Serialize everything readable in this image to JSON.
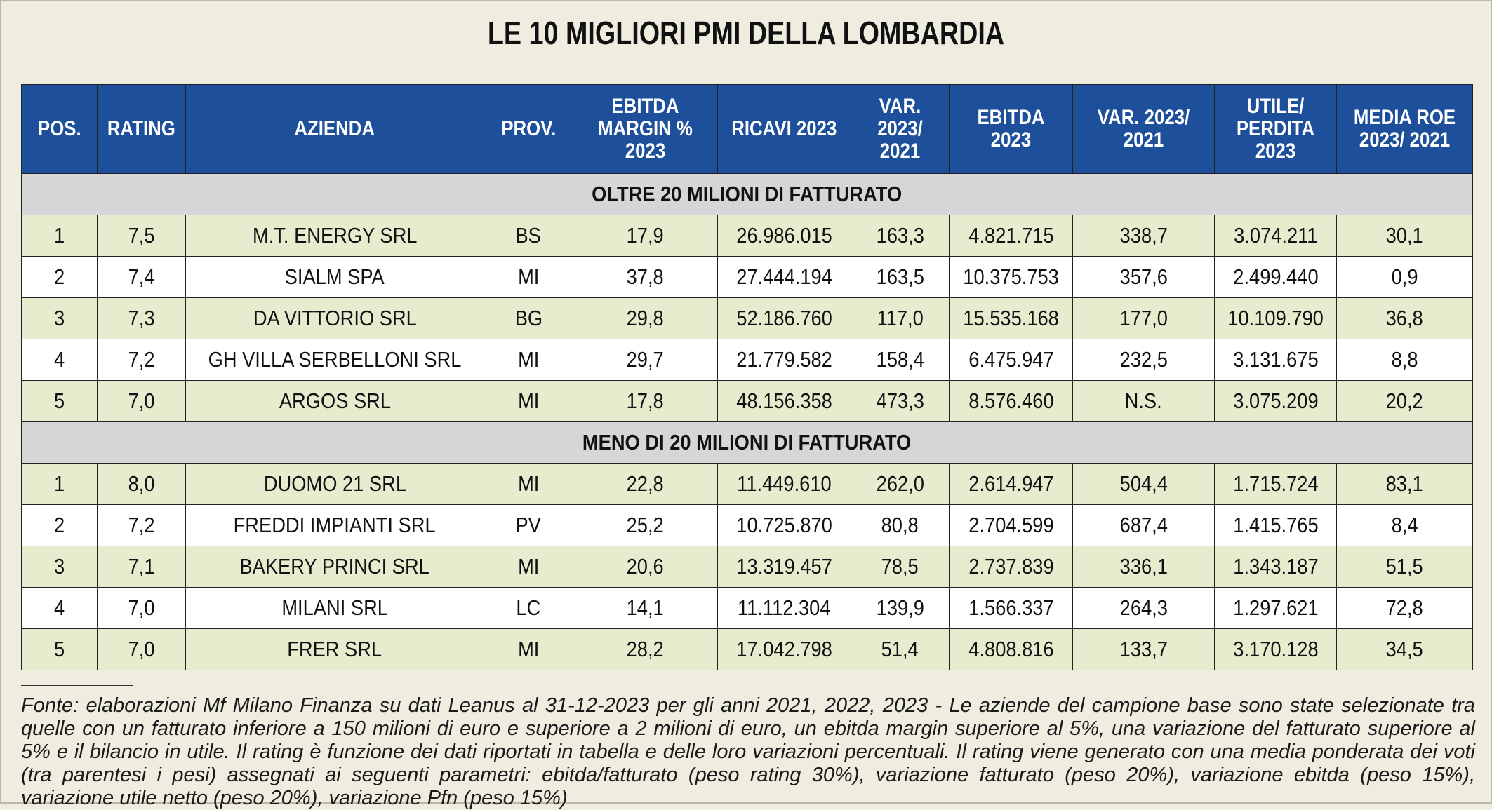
{
  "title": "LE 10 MIGLIORI PMI DELLA LOMBARDIA",
  "columns": [
    "POS.",
    "RATING",
    "AZIENDA",
    "PROV.",
    "EBITDA MARGIN % 2023",
    "RICAVI 2023",
    "VAR. 2023/ 2021",
    "EBITDA 2023",
    "VAR. 2023/ 2021",
    "UTILE/ PERDITA 2023",
    "MEDIA ROE 2023/ 2021"
  ],
  "sections": [
    {
      "label": "OLTRE 20 MILIONI DI FATTURATO",
      "rows": [
        [
          "1",
          "7,5",
          "M.T. ENERGY SRL",
          "BS",
          "17,9",
          "26.986.015",
          "163,3",
          "4.821.715",
          "338,7",
          "3.074.211",
          "30,1"
        ],
        [
          "2",
          "7,4",
          "SIALM SPA",
          "MI",
          "37,8",
          "27.444.194",
          "163,5",
          "10.375.753",
          "357,6",
          "2.499.440",
          "0,9"
        ],
        [
          "3",
          "7,3",
          "DA VITTORIO SRL",
          "BG",
          "29,8",
          "52.186.760",
          "117,0",
          "15.535.168",
          "177,0",
          "10.109.790",
          "36,8"
        ],
        [
          "4",
          "7,2",
          "GH VILLA SERBELLONI SRL",
          "MI",
          "29,7",
          "21.779.582",
          "158,4",
          "6.475.947",
          "232,5",
          "3.131.675",
          "8,8"
        ],
        [
          "5",
          "7,0",
          "ARGOS SRL",
          "MI",
          "17,8",
          "48.156.358",
          "473,3",
          "8.576.460",
          "N.S.",
          "3.075.209",
          "20,2"
        ]
      ]
    },
    {
      "label": "MENO DI 20 MILIONI DI FATTURATO",
      "rows": [
        [
          "1",
          "8,0",
          "DUOMO 21 SRL",
          "MI",
          "22,8",
          "11.449.610",
          "262,0",
          "2.614.947",
          "504,4",
          "1.715.724",
          "83,1"
        ],
        [
          "2",
          "7,2",
          "FREDDI IMPIANTI SRL",
          "PV",
          "25,2",
          "10.725.870",
          "80,8",
          "2.704.599",
          "687,4",
          "1.415.765",
          "8,4"
        ],
        [
          "3",
          "7,1",
          "BAKERY PRINCI SRL",
          "MI",
          "20,6",
          "13.319.457",
          "78,5",
          "2.737.839",
          "336,1",
          "1.343.187",
          "51,5"
        ],
        [
          "4",
          "7,0",
          "MILANI SRL",
          "LC",
          "14,1",
          "11.112.304",
          "139,9",
          "1.566.337",
          "264,3",
          "1.297.621",
          "72,8"
        ],
        [
          "5",
          "7,0",
          "FRER SRL",
          "MI",
          "28,2",
          "17.042.798",
          "51,4",
          "4.808.816",
          "133,7",
          "3.170.128",
          "34,5"
        ]
      ]
    }
  ],
  "footnote": "Fonte: elaborazioni Mf Milano Finanza su dati Leanus al 31-12-2023 per gli anni 2021, 2022, 2023 - Le aziende del campione base sono state selezionate tra quelle con un fatturato inferiore a 150 milioni di euro e superiore a 2 milioni di euro, un ebitda margin superiore al 5%, una variazione del fatturato superiore al 5% e il bilancio in utile. Il rating è funzione dei dati riportati in tabella e delle loro variazioni percentuali. Il rating viene generato con una media ponderata dei voti (tra parentesi i pesi) assegnati ai seguenti parametri: ebitda/fatturato (peso rating 30%), variazione fatturato (peso 20%), variazione ebitda (peso 15%), variazione utile netto (peso 20%), variazione Pfn (peso 15%)",
  "colors": {
    "header_bg": "#1e4f9a",
    "section_bg": "#d6d6d8",
    "row_alt_bg": "#e8eccf",
    "page_bg": "#efece0"
  }
}
